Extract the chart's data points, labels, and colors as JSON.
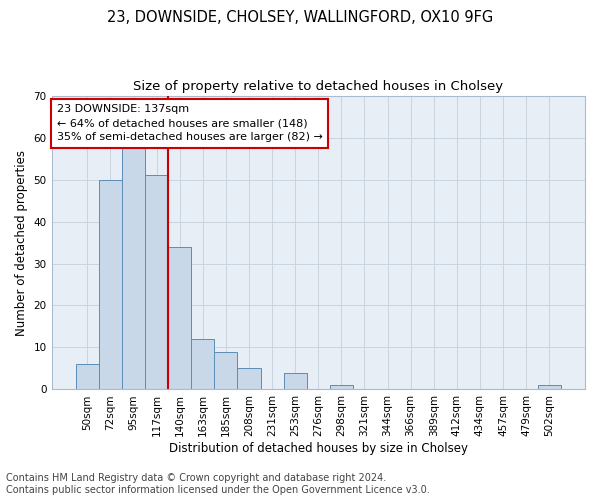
{
  "title1": "23, DOWNSIDE, CHOLSEY, WALLINGFORD, OX10 9FG",
  "title2": "Size of property relative to detached houses in Cholsey",
  "xlabel": "Distribution of detached houses by size in Cholsey",
  "ylabel": "Number of detached properties",
  "footnote1": "Contains HM Land Registry data © Crown copyright and database right 2024.",
  "footnote2": "Contains public sector information licensed under the Open Government Licence v3.0.",
  "bin_labels": [
    "50sqm",
    "72sqm",
    "95sqm",
    "117sqm",
    "140sqm",
    "163sqm",
    "185sqm",
    "208sqm",
    "231sqm",
    "253sqm",
    "276sqm",
    "298sqm",
    "321sqm",
    "344sqm",
    "366sqm",
    "389sqm",
    "412sqm",
    "434sqm",
    "457sqm",
    "479sqm",
    "502sqm"
  ],
  "bar_values": [
    6,
    50,
    58,
    51,
    34,
    12,
    9,
    5,
    0,
    4,
    0,
    1,
    0,
    0,
    0,
    0,
    0,
    0,
    0,
    0,
    1
  ],
  "bar_color": "#c8d8e8",
  "bar_edge_color": "#5b8db8",
  "annotation_box_text": "23 DOWNSIDE: 137sqm\n← 64% of detached houses are smaller (148)\n35% of semi-detached houses are larger (82) →",
  "annotation_box_color": "#ffffff",
  "annotation_box_edge_color": "#cc0000",
  "vline_color": "#cc0000",
  "ylim": [
    0,
    70
  ],
  "yticks": [
    0,
    10,
    20,
    30,
    40,
    50,
    60,
    70
  ],
  "grid_color": "#c8d4e0",
  "plot_bg_color": "#e8eef5",
  "title1_fontsize": 10.5,
  "title2_fontsize": 9.5,
  "xlabel_fontsize": 8.5,
  "ylabel_fontsize": 8.5,
  "footnote_fontsize": 7,
  "tick_fontsize": 7.5,
  "annot_fontsize": 8
}
